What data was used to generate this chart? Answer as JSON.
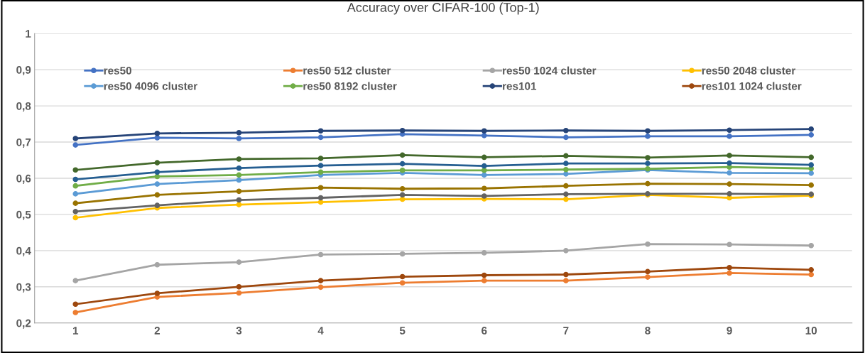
{
  "chart_data": {
    "type": "line",
    "title": "Accuracy over CIFAR-100 (Top-1)",
    "x": [
      1,
      2,
      3,
      4,
      5,
      6,
      7,
      8,
      9,
      10
    ],
    "xlim": [
      0.5,
      10.5
    ],
    "xticks": [
      1,
      2,
      3,
      4,
      5,
      6,
      7,
      8,
      9,
      10
    ],
    "ylim": [
      0.2,
      1
    ],
    "yticks": [
      {
        "value": 0.2,
        "label": "0,2"
      },
      {
        "value": 0.3,
        "label": "0,3"
      },
      {
        "value": 0.4,
        "label": "0,4"
      },
      {
        "value": 0.5,
        "label": "0,5"
      },
      {
        "value": 0.6,
        "label": "0,6"
      },
      {
        "value": 0.7,
        "label": "0,7"
      },
      {
        "value": 0.8,
        "label": "0,8"
      },
      {
        "value": 0.9,
        "label": "0,9"
      },
      {
        "value": 1,
        "label": "1"
      }
    ],
    "grid": "y",
    "legend": "top",
    "marker": "circle",
    "line_style": "solid",
    "series": [
      {
        "name": "res50",
        "color": "#4472c4",
        "values": [
          0.692,
          0.712,
          0.71,
          0.713,
          0.722,
          0.718,
          0.713,
          0.716,
          0.716,
          0.72
        ]
      },
      {
        "name": "res50 512 cluster",
        "color": "#ed7d31",
        "values": [
          0.229,
          0.272,
          0.283,
          0.299,
          0.311,
          0.317,
          0.317,
          0.327,
          0.338,
          0.334
        ]
      },
      {
        "name": "res50 1024 cluster",
        "color": "#a5a5a5",
        "values": [
          0.317,
          0.361,
          0.368,
          0.389,
          0.391,
          0.394,
          0.4,
          0.418,
          0.417,
          0.414
        ]
      },
      {
        "name": "res50 2048 cluster",
        "color": "#ffc000",
        "values": [
          0.491,
          0.518,
          0.527,
          0.534,
          0.542,
          0.543,
          0.542,
          0.554,
          0.546,
          0.552
        ]
      },
      {
        "name": "res50 4096 cluster",
        "color": "#5b9bd5",
        "values": [
          0.557,
          0.584,
          0.595,
          0.609,
          0.615,
          0.609,
          0.612,
          0.623,
          0.615,
          0.614
        ]
      },
      {
        "name": "res50 8192 cluster",
        "color": "#70ad47",
        "values": [
          0.579,
          0.605,
          0.609,
          0.617,
          0.622,
          0.622,
          0.624,
          0.626,
          0.631,
          0.627
        ]
      },
      {
        "name": "res101",
        "color": "#264478",
        "values": [
          0.71,
          0.724,
          0.726,
          0.731,
          0.732,
          0.731,
          0.732,
          0.731,
          0.733,
          0.736
        ]
      },
      {
        "name": "res101 1024 cluster",
        "color": "#9e480e",
        "values": [
          0.252,
          0.282,
          0.3,
          0.317,
          0.328,
          0.332,
          0.334,
          0.342,
          0.353,
          0.347
        ]
      },
      {
        "color": "#43682b",
        "values": [
          0.623,
          0.643,
          0.653,
          0.655,
          0.664,
          0.658,
          0.662,
          0.657,
          0.663,
          0.658
        ]
      },
      {
        "color": "#255e91",
        "values": [
          0.597,
          0.617,
          0.628,
          0.635,
          0.64,
          0.634,
          0.641,
          0.641,
          0.642,
          0.637
        ]
      },
      {
        "color": "#997300",
        "values": [
          0.531,
          0.554,
          0.564,
          0.574,
          0.571,
          0.572,
          0.579,
          0.585,
          0.584,
          0.581
        ]
      },
      {
        "color": "#636363",
        "values": [
          0.508,
          0.525,
          0.54,
          0.546,
          0.554,
          0.551,
          0.556,
          0.557,
          0.557,
          0.556
        ]
      }
    ]
  }
}
